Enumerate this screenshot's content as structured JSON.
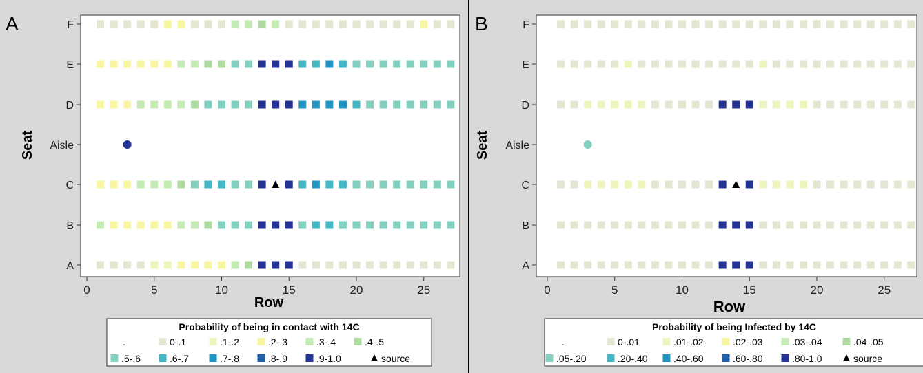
{
  "chart_data": [
    {
      "type": "scatter",
      "panel_label": "A",
      "xlabel": "Row",
      "ylabel": "Seat",
      "xlim": [
        0,
        27
      ],
      "xticks": [
        0,
        5,
        10,
        15,
        20,
        25
      ],
      "seats": [
        "A",
        "B",
        "C",
        "Aisle",
        "D",
        "E",
        "F"
      ],
      "legend_title": "Probability of being in contact with 14C",
      "legend_placement": "bottom",
      "legend": [
        {
          "label": ".",
          "color": "#ffffff"
        },
        {
          "label": "0-.1",
          "color": "#e4e6d2"
        },
        {
          "label": ".1-.2",
          "color": "#eff4bd"
        },
        {
          "label": ".2-.3",
          "color": "#f8f6a3"
        },
        {
          "label": ".3-.4",
          "color": "#c5ebb4"
        },
        {
          "label": ".4-.5",
          "color": "#aedca0"
        },
        {
          "label": ".5-.6",
          "color": "#83d0c0"
        },
        {
          "label": ".6-.7",
          "color": "#45b6c4"
        },
        {
          "label": ".7-.8",
          "color": "#2196c4"
        },
        {
          "label": ".8-.9",
          "color": "#2060aa"
        },
        {
          "label": ".9-1.0",
          "color": "#253494"
        },
        {
          "label": "source",
          "color": "#000000",
          "marker": "triangle"
        }
      ],
      "grid": {
        "F": [
          1,
          1,
          1,
          1,
          1,
          3,
          3,
          1,
          1,
          1,
          4,
          4,
          5,
          4,
          1,
          1,
          1,
          1,
          1,
          1,
          1,
          1,
          1,
          1,
          3,
          1,
          1
        ],
        "E": [
          3,
          3,
          3,
          3,
          3,
          3,
          4,
          4,
          5,
          5,
          6,
          6,
          10,
          10,
          10,
          7,
          7,
          8,
          7,
          6,
          6,
          6,
          6,
          6,
          6,
          6,
          6
        ],
        "D": [
          3,
          3,
          3,
          4,
          4,
          4,
          4,
          5,
          6,
          6,
          6,
          6,
          10,
          10,
          10,
          8,
          8,
          8,
          8,
          7,
          6,
          6,
          6,
          6,
          6,
          6,
          6
        ],
        "C": [
          3,
          3,
          3,
          4,
          4,
          4,
          5,
          6,
          7,
          7,
          6,
          6,
          10,
          11,
          10,
          7,
          8,
          7,
          7,
          6,
          6,
          6,
          6,
          6,
          6,
          6,
          6
        ],
        "B": [
          4,
          3,
          3,
          3,
          3,
          3,
          4,
          4,
          5,
          6,
          6,
          6,
          10,
          10,
          10,
          6,
          7,
          7,
          6,
          6,
          6,
          6,
          6,
          6,
          6,
          6,
          6
        ],
        "A": [
          1,
          1,
          1,
          1,
          2,
          2,
          3,
          3,
          3,
          3,
          4,
          5,
          10,
          10,
          10,
          1,
          1,
          1,
          1,
          1,
          1,
          1,
          1,
          1,
          1,
          1,
          1
        ]
      },
      "aisle_point": {
        "row": 3,
        "color": "#253494"
      }
    },
    {
      "type": "scatter",
      "panel_label": "B",
      "xlabel": "Row",
      "ylabel": "Seat",
      "xlim": [
        0,
        27
      ],
      "xticks": [
        0,
        5,
        10,
        15,
        20,
        25
      ],
      "seats": [
        "A",
        "B",
        "C",
        "Aisle",
        "D",
        "E",
        "F"
      ],
      "legend_title": "Probability of being Infected by 14C",
      "legend_placement": "bottom",
      "legend": [
        {
          "label": ".",
          "color": "#ffffff"
        },
        {
          "label": "0-.01",
          "color": "#e4e6d2"
        },
        {
          "label": ".01-.02",
          "color": "#eff4bd"
        },
        {
          "label": ".02-.03",
          "color": "#f8f6a3"
        },
        {
          "label": ".03-.04",
          "color": "#c5ebb4"
        },
        {
          "label": ".04-.05",
          "color": "#aedca0"
        },
        {
          "label": ".05-.20",
          "color": "#83d0c0"
        },
        {
          "label": ".20-.40",
          "color": "#45b6c4"
        },
        {
          "label": ".40-.60",
          "color": "#2196c4"
        },
        {
          "label": ".60-.80",
          "color": "#2060aa"
        },
        {
          "label": ".80-1.0",
          "color": "#253494"
        },
        {
          "label": "source",
          "color": "#000000",
          "marker": "triangle"
        }
      ],
      "grid": {
        "F": [
          1,
          1,
          1,
          1,
          1,
          1,
          1,
          1,
          1,
          1,
          1,
          1,
          1,
          1,
          1,
          1,
          1,
          1,
          1,
          1,
          1,
          1,
          1,
          1,
          1,
          1,
          1
        ],
        "E": [
          1,
          1,
          1,
          1,
          1,
          2,
          1,
          1,
          1,
          1,
          1,
          1,
          1,
          1,
          1,
          2,
          1,
          1,
          1,
          1,
          1,
          1,
          1,
          1,
          1,
          1,
          1
        ],
        "D": [
          1,
          1,
          2,
          2,
          2,
          2,
          2,
          1,
          1,
          1,
          1,
          1,
          10,
          10,
          10,
          2,
          2,
          2,
          2,
          1,
          1,
          1,
          1,
          1,
          1,
          1,
          1
        ],
        "C": [
          1,
          1,
          2,
          2,
          2,
          2,
          2,
          1,
          1,
          1,
          1,
          1,
          10,
          11,
          10,
          2,
          2,
          2,
          2,
          1,
          1,
          1,
          1,
          1,
          1,
          1,
          1
        ],
        "B": [
          1,
          1,
          1,
          1,
          1,
          1,
          1,
          1,
          1,
          1,
          1,
          1,
          10,
          10,
          10,
          1,
          1,
          1,
          1,
          1,
          1,
          1,
          1,
          1,
          1,
          1,
          1
        ],
        "A": [
          1,
          1,
          1,
          1,
          1,
          1,
          1,
          1,
          1,
          1,
          1,
          1,
          10,
          10,
          10,
          1,
          1,
          1,
          1,
          1,
          1,
          1,
          1,
          1,
          1,
          1,
          1
        ]
      },
      "aisle_point": {
        "row": 3,
        "color": "#83d0c0"
      }
    }
  ]
}
